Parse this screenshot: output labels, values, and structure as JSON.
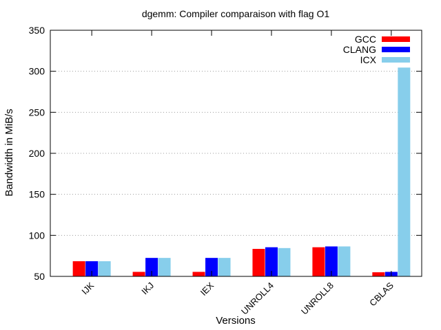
{
  "chart_data": {
    "type": "bar",
    "title": "dgemm: Compiler comparaison with flag O1",
    "xlabel": "Versions",
    "ylabel": "Bandwidth in MiB/s",
    "ylim": [
      50,
      350
    ],
    "yticks": [
      50,
      100,
      150,
      200,
      250,
      300,
      350
    ],
    "grid": "horizontal dotted",
    "legend_position": "top-right",
    "categories": [
      "IJK",
      "IKJ",
      "IEX",
      "UNROLL4",
      "UNROLL8",
      "CBLAS"
    ],
    "series": [
      {
        "name": "GCC",
        "color": "#ff0000",
        "values": [
          68.5,
          55.5,
          55.5,
          83.5,
          85.5,
          55
        ]
      },
      {
        "name": "CLANG",
        "color": "#0000ff",
        "values": [
          68.5,
          72.5,
          72.5,
          85.5,
          86.5,
          55.5
        ]
      },
      {
        "name": "ICX",
        "color": "#87ceeb",
        "values": [
          68.5,
          72.5,
          72.5,
          84.5,
          86.5,
          304.5
        ]
      }
    ]
  }
}
